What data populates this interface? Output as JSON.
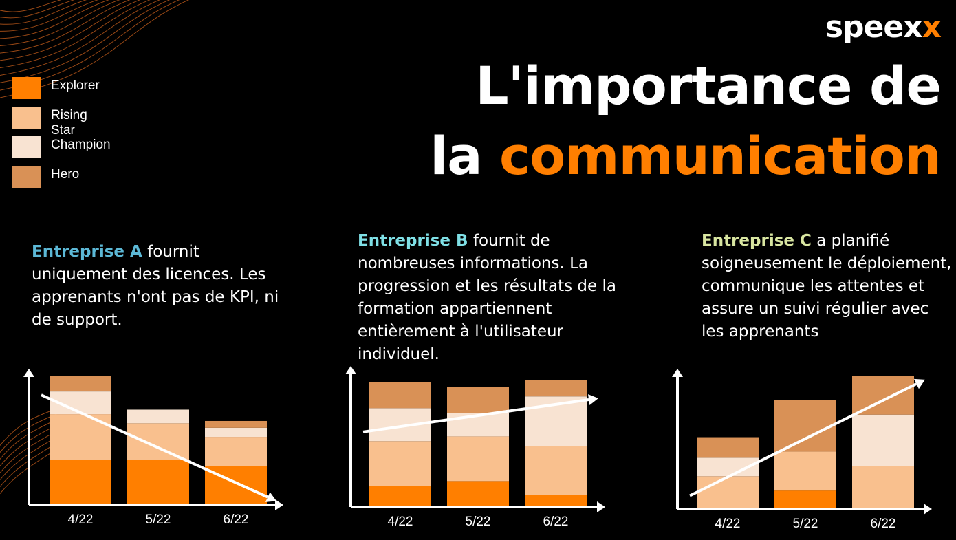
{
  "brand": {
    "logo_main": "speex",
    "logo_accent": "x",
    "logo_color": "#ffffff",
    "accent_color": "#ff7f00"
  },
  "title": {
    "line1": "L'importance de",
    "line2_prefix": "la ",
    "line2_highlight": "communication",
    "highlight_color": "#ff7f00"
  },
  "legend": [
    {
      "label": "Explorer",
      "color": "#ff7f00"
    },
    {
      "label": "Rising Star",
      "color": "#f9c08e"
    },
    {
      "label": "Champion",
      "color": "#f8e3d2"
    },
    {
      "label": "Hero",
      "color": "#d99156"
    }
  ],
  "descriptions": [
    {
      "company": "Entreprise A",
      "company_color": "#5cb8d6",
      "rest": " fournit uniquement des licences. Les apprenants n'ont pas de KPI, ni de support."
    },
    {
      "company": "Entreprise B",
      "company_color": "#7fe0e6",
      "rest": " fournit de nombreuses informations. La progression et les résultats de la formation appartiennent entièrement à l'utilisateur individuel."
    },
    {
      "company": "Entreprise C",
      "company_color": "#d9e6a1",
      "rest": " a planifié soigneusement le déploiement, communique les attentes et assure un suivi régulier avec les apprenants"
    }
  ],
  "chart_data": [
    {
      "type": "bar",
      "stacked": true,
      "categories": [
        "4/22",
        "5/22",
        "6/22"
      ],
      "series": [
        {
          "name": "Explorer",
          "values": [
            20,
            20,
            17
          ]
        },
        {
          "name": "Rising Star",
          "values": [
            20,
            16,
            13
          ]
        },
        {
          "name": "Champion",
          "values": [
            10,
            6,
            4
          ]
        },
        {
          "name": "Hero",
          "values": [
            7,
            0,
            3
          ]
        }
      ],
      "trend": "down",
      "ylim": [
        0,
        57
      ]
    },
    {
      "type": "bar",
      "stacked": true,
      "categories": [
        "4/22",
        "5/22",
        "6/22"
      ],
      "series": [
        {
          "name": "Explorer",
          "values": [
            9,
            11,
            5
          ]
        },
        {
          "name": "Rising Star",
          "values": [
            19,
            19,
            21
          ]
        },
        {
          "name": "Champion",
          "values": [
            14,
            10,
            21
          ]
        },
        {
          "name": "Hero",
          "values": [
            11,
            11,
            7
          ]
        }
      ],
      "trend": "up",
      "ylim": [
        0,
        57
      ]
    },
    {
      "type": "bar",
      "stacked": true,
      "categories": [
        "4/22",
        "5/22",
        "6/22"
      ],
      "series": [
        {
          "name": "Explorer",
          "values": [
            0,
            9,
            0
          ]
        },
        {
          "name": "Rising Star",
          "values": [
            16,
            19,
            21
          ]
        },
        {
          "name": "Champion",
          "values": [
            9,
            0,
            25
          ]
        },
        {
          "name": "Hero",
          "values": [
            10,
            25,
            19
          ]
        }
      ],
      "trend": "up",
      "ylim": [
        0,
        65
      ]
    }
  ]
}
